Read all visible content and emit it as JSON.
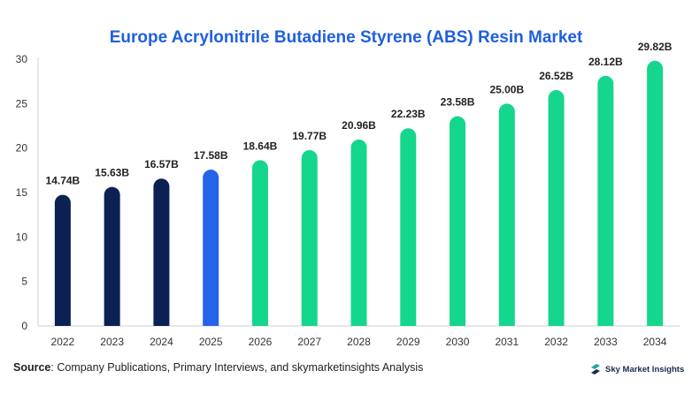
{
  "chart_data": {
    "type": "bar",
    "title": "Europe Acrylonitrile Butadiene Styrene (ABS) Resin Market",
    "xlabel": "",
    "ylabel": "",
    "ylim": [
      0,
      30
    ],
    "yticks": [
      0,
      5,
      10,
      15,
      20,
      25,
      30
    ],
    "grid": false,
    "categories": [
      "2022",
      "2023",
      "2024",
      "2025",
      "2026",
      "2027",
      "2028",
      "2029",
      "2030",
      "2031",
      "2032",
      "2033",
      "2034"
    ],
    "values": [
      14.74,
      15.63,
      16.57,
      17.58,
      18.64,
      19.77,
      20.96,
      22.23,
      23.58,
      25.0,
      26.52,
      28.12,
      29.82
    ],
    "value_labels": [
      "14.74B",
      "15.63B",
      "16.57B",
      "17.58B",
      "18.64B",
      "19.77B",
      "20.96B",
      "22.23B",
      "23.58B",
      "25.00B",
      "26.52B",
      "28.12B",
      "29.82B"
    ],
    "bar_colors": [
      "#0b2154",
      "#0b2154",
      "#0b2154",
      "#2563eb",
      "#14d68c",
      "#14d68c",
      "#14d68c",
      "#14d68c",
      "#14d68c",
      "#14d68c",
      "#14d68c",
      "#14d68c",
      "#14d68c"
    ]
  },
  "footer": {
    "source_label": "Source",
    "source_text": ": Company Publications, Primary Interviews, and skymarketinsights Analysis"
  },
  "brand": {
    "name": "Sky Market Insights",
    "logo_icon": "sky-market-insights-logo-icon",
    "logo_color": "#1fa3a8"
  }
}
